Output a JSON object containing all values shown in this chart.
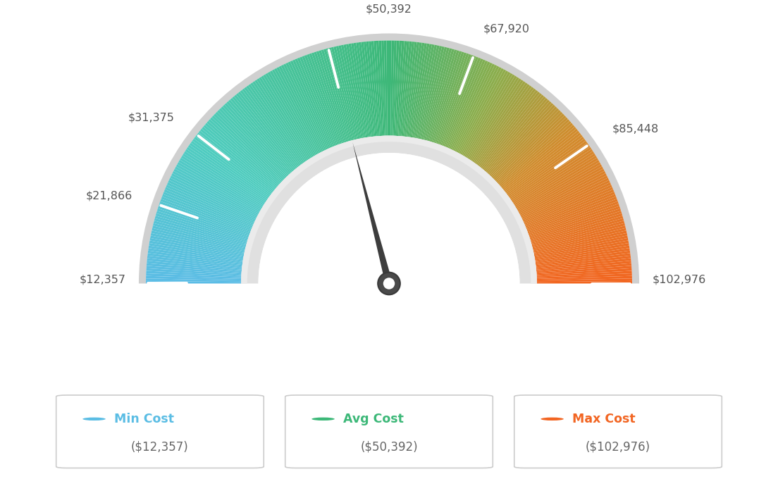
{
  "min_value": 12357,
  "max_value": 102976,
  "avg_value": 50392,
  "labels": [
    "$12,357",
    "$21,866",
    "$31,375",
    "$50,392",
    "$67,920",
    "$85,448",
    "$102,976"
  ],
  "label_values": [
    12357,
    21866,
    31375,
    50392,
    67920,
    85448,
    102976
  ],
  "min_cost_label": "Min Cost",
  "avg_cost_label": "Avg Cost",
  "max_cost_label": "Max Cost",
  "min_cost_value": "($12,357)",
  "avg_cost_value": "($50,392)",
  "max_cost_value": "($102,976)",
  "min_color": "#5bbde4",
  "avg_color": "#3cb878",
  "max_color": "#f26522",
  "background_color": "#ffffff",
  "color_stops": [
    [
      0.0,
      [
        0.36,
        0.74,
        0.9
      ]
    ],
    [
      0.2,
      [
        0.31,
        0.8,
        0.75
      ]
    ],
    [
      0.42,
      [
        0.27,
        0.75,
        0.55
      ]
    ],
    [
      0.5,
      [
        0.24,
        0.72,
        0.47
      ]
    ],
    [
      0.65,
      [
        0.55,
        0.68,
        0.3
      ]
    ],
    [
      0.78,
      [
        0.82,
        0.55,
        0.18
      ]
    ],
    [
      1.0,
      [
        0.95,
        0.4,
        0.13
      ]
    ]
  ]
}
